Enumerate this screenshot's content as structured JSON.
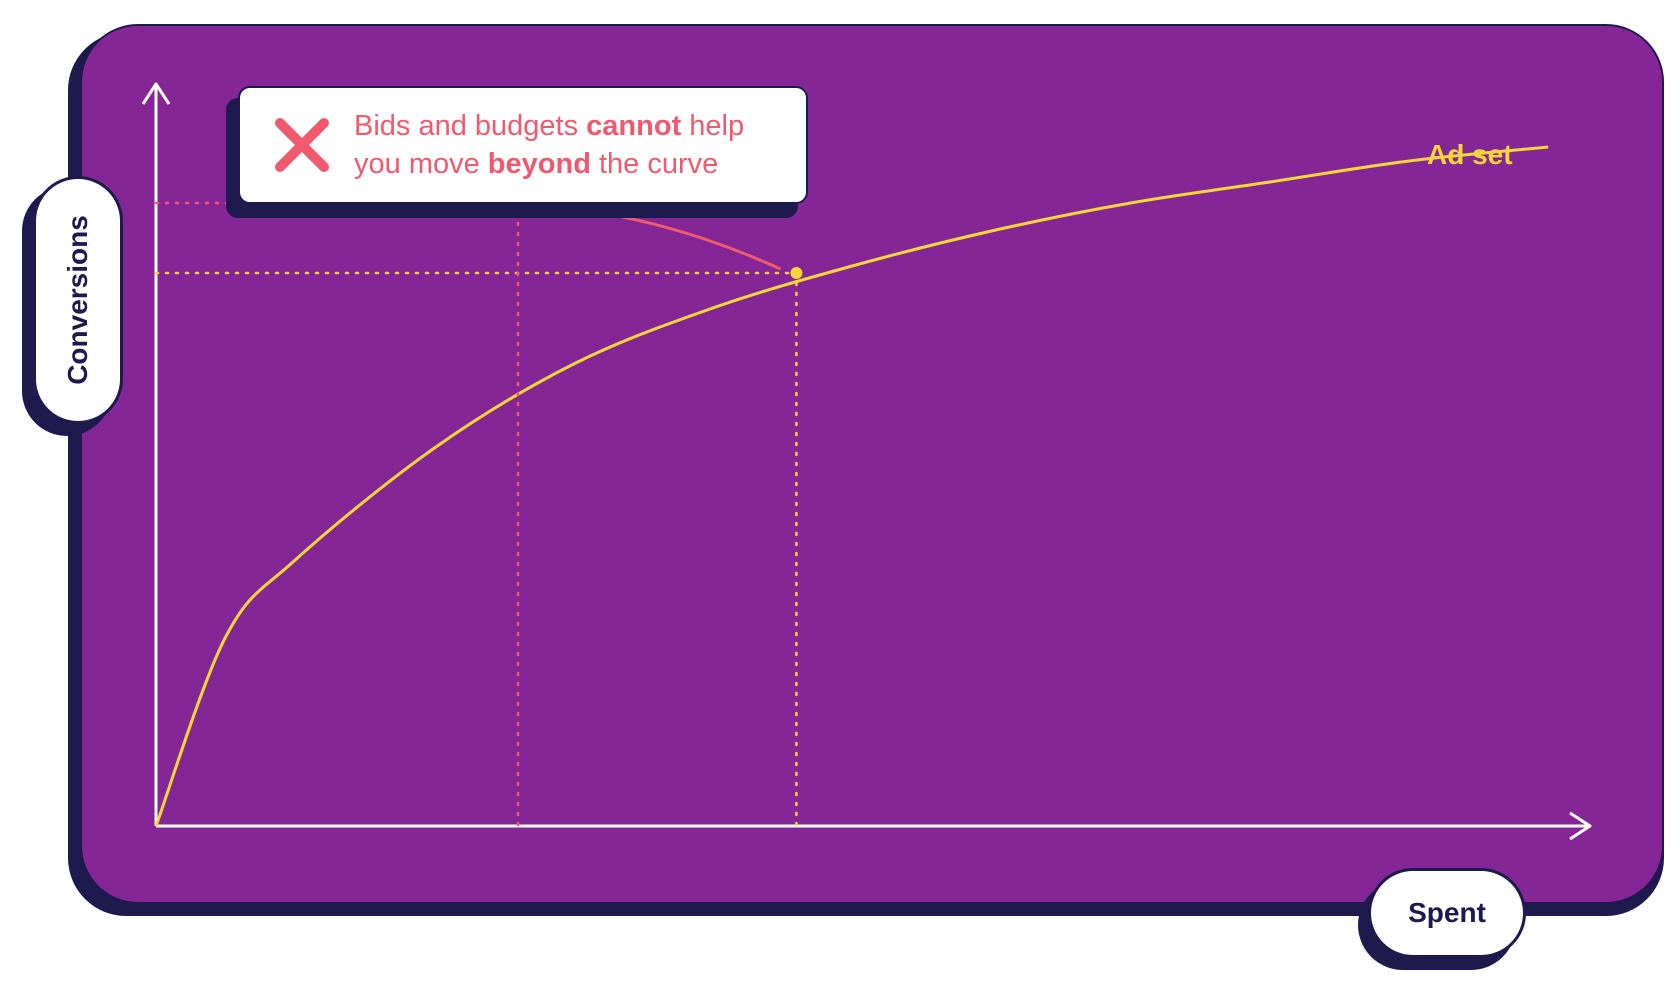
{
  "chart_data": {
    "type": "line",
    "xlabel": "Spent",
    "ylabel": "Conversions",
    "series": [
      {
        "name": "Ad set",
        "color": "#f5d638",
        "x": [
          0,
          0.5,
          1,
          2,
          3,
          4,
          5,
          6,
          7,
          8,
          9,
          10
        ],
        "y": [
          0,
          2.7,
          3.8,
          5.4,
          6.6,
          7.4,
          8.0,
          8.5,
          8.9,
          9.2,
          9.5,
          9.7
        ]
      }
    ],
    "highlight_points": [
      {
        "x": 4.6,
        "y": 7.9,
        "color": "#f5d638"
      },
      {
        "x": 2.6,
        "y": 8.9,
        "color": "#ef5a6f"
      }
    ],
    "annotations": [
      {
        "text_parts": [
          "Bids and budgets ",
          "cannot",
          " help",
          "you move ",
          "beyond",
          " the curve"
        ],
        "color": "#ef5a6f",
        "icon": "x-icon"
      }
    ],
    "xlim": [
      0,
      10.3
    ],
    "ylim": [
      0,
      10.6
    ],
    "grid": false,
    "legend": "none"
  },
  "colors": {
    "panel": "#842696",
    "outline": "#1f1a4d",
    "axis": "#ffffff",
    "curve": "#f5d638",
    "accent": "#ef5a6f"
  },
  "labels": {
    "series_name": "Ad set",
    "x_axis": "Spent",
    "y_axis": "Conversions",
    "note": {
      "line1_a": "Bids and budgets ",
      "line1_b": "cannot",
      "line1_c": " help",
      "line2_a": "you move ",
      "line2_b": "beyond",
      "line2_c": " the curve"
    }
  }
}
